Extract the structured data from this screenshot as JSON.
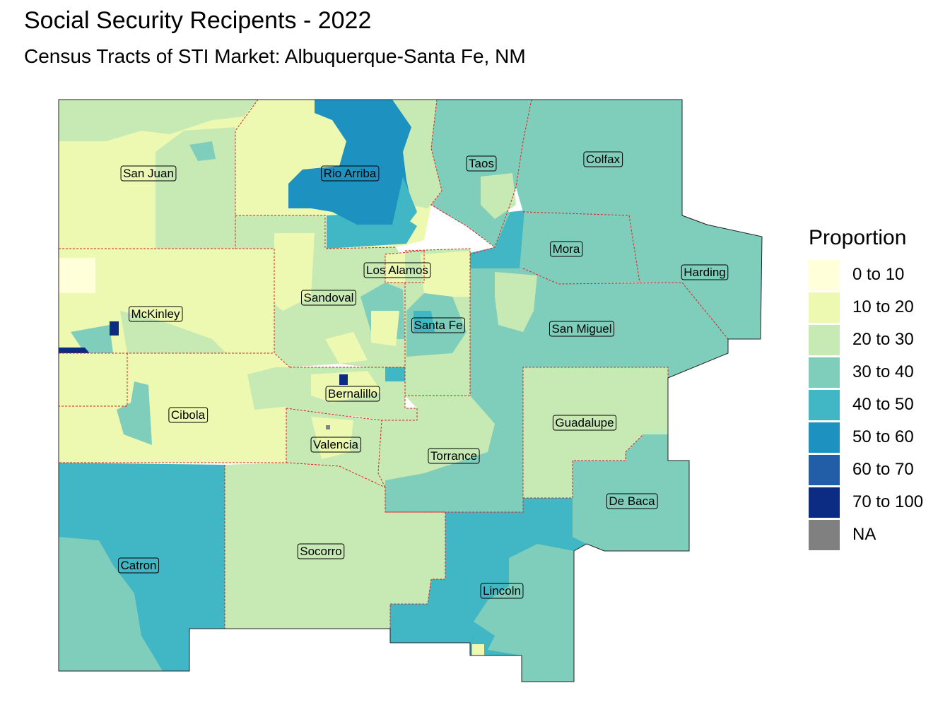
{
  "title": "Social Security Recipents - 2022",
  "subtitle": "Census Tracts of STI Market: Albuquerque-Santa Fe, NM",
  "legend": {
    "title": "Proportion",
    "items": [
      {
        "label": "0 to 10",
        "color": "#ffffd9"
      },
      {
        "label": "10 to 20",
        "color": "#edf8b1"
      },
      {
        "label": "20 to 30",
        "color": "#c7e9b4"
      },
      {
        "label": "30 to 40",
        "color": "#7fcdbb"
      },
      {
        "label": "40 to 50",
        "color": "#41b6c4"
      },
      {
        "label": "50 to 60",
        "color": "#1d91c0"
      },
      {
        "label": "60 to 70",
        "color": "#225ea8"
      },
      {
        "label": "70 to 100",
        "color": "#0c2c84"
      },
      {
        "label": "NA",
        "color": "#808080"
      }
    ]
  },
  "counties": [
    {
      "name": "San Juan",
      "class": "10 to 20"
    },
    {
      "name": "Rio Arriba",
      "class": "10 to 20"
    },
    {
      "name": "Taos",
      "class": "30 to 40"
    },
    {
      "name": "Colfax",
      "class": "30 to 40"
    },
    {
      "name": "Mora",
      "class": "30 to 40"
    },
    {
      "name": "Harding",
      "class": "30 to 40"
    },
    {
      "name": "Los Alamos",
      "class": "10 to 20"
    },
    {
      "name": "Sandoval",
      "class": "20 to 30"
    },
    {
      "name": "McKinley",
      "class": "10 to 20"
    },
    {
      "name": "Santa Fe",
      "class": "20 to 30"
    },
    {
      "name": "San Miguel",
      "class": "30 to 40"
    },
    {
      "name": "Bernalillo",
      "class": "20 to 30"
    },
    {
      "name": "Cibola",
      "class": "10 to 20"
    },
    {
      "name": "Guadalupe",
      "class": "20 to 30"
    },
    {
      "name": "Valencia",
      "class": "20 to 30"
    },
    {
      "name": "Torrance",
      "class": "30 to 40"
    },
    {
      "name": "De Baca",
      "class": "30 to 40"
    },
    {
      "name": "Socorro",
      "class": "20 to 30"
    },
    {
      "name": "Catron",
      "class": "30 to 40"
    },
    {
      "name": "Lincoln",
      "class": "30 to 40"
    }
  ]
}
